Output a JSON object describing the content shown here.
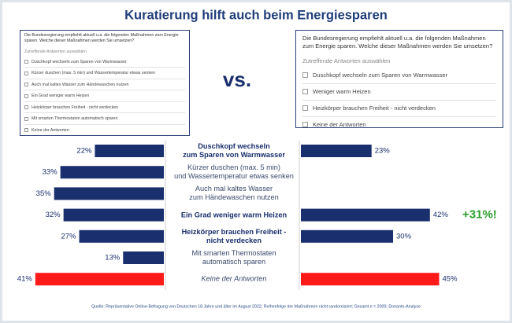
{
  "chart_data": {
    "type": "butterfly",
    "title": "Kuratierung hilft auch beim Energiesparen",
    "vs_label": "vs.",
    "categories": [
      "Duschkopf wechseln\nzum Sparen von Warmwasser",
      "Kürzer duschen (max. 5 min)\nund Wassertemperatur etwas senken",
      "Auch mal kaltes Wasser\nzum Händewaschen nutzen",
      "Ein Grad weniger warm Heizen",
      "Heizkörper brauchen Freiheit -\nnicht verdecken",
      "Mit smarten Thermostaten\nautomatisch sparen",
      "Keine der Antworten"
    ],
    "category_styles": [
      "bold",
      "normal",
      "normal",
      "bold",
      "bold",
      "normal",
      "italic"
    ],
    "series": [
      {
        "side": "left",
        "colors": [
          "#1a2f6e",
          "#1a2f6e",
          "#1a2f6e",
          "#1a2f6e",
          "#1a2f6e",
          "#1a2f6e",
          "#ff1a1a"
        ],
        "values": [
          22,
          33,
          35,
          32,
          27,
          13,
          41
        ],
        "value_labels": [
          "22%",
          "33%",
          "35%",
          "32%",
          "27%",
          "13%",
          "41%"
        ]
      },
      {
        "side": "right",
        "colors": [
          "#1a2f6e",
          null,
          null,
          "#1a2f6e",
          "#1a2f6e",
          null,
          "#ff1a1a"
        ],
        "values": [
          23,
          null,
          null,
          42,
          30,
          null,
          45
        ],
        "value_labels": [
          "23%",
          null,
          null,
          "42%",
          "30%",
          null,
          "45%"
        ]
      }
    ],
    "annotation": {
      "text": "+31%!",
      "row": 3,
      "color": "#2aa02a"
    },
    "source": "Quelle: Repräsentative Online-Befragung von Deutschen 18 Jahre und älter im August 2022; Reihenfolge der Maßnahmen nicht randomisiert; Gesamt n = 2000; Donanto-Analyse"
  },
  "survey_left": {
    "question": "Die Bundesregierung empfiehlt aktuell u.a. die folgenden Maßnahmen zum Energie sparen. Welche dieser Maßnahmen werden Sie umsetzen?",
    "hint": "Zutreffende Antworten auswählen",
    "options": [
      "Duschkopf wechseln zum Sparen von Warmwasser",
      "Kürzer duschen (max. 5 min) und Wassertemperatur etwas senken",
      "Auch mal kaltes Wasser zum Händewaschen nutzen",
      "Ein Grad weniger warm Heizen",
      "Heizkörper brauchen Freiheit - nicht verdecken",
      "Mit smarten Thermostaten automatisch sparen",
      "Keine der Antworten"
    ]
  },
  "survey_right": {
    "question": "Die Bundesregierung empfiehlt aktuell u.a. die folgenden Maßnahmen zum Energie sparen. Welche dieser Maßnahmen werden Sie umsetzen?",
    "hint": "Zutreffende Antworten auswählen",
    "options": [
      "Duschkopf wechseln zum Sparen von Warmwasser",
      "Weniger warm Heizen",
      "Heizkörper brauchen Freiheit - nicht verdecken",
      "Keine der Antworten"
    ]
  }
}
